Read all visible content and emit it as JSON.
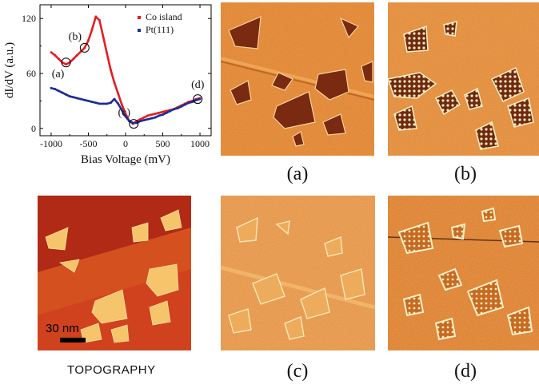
{
  "chart_data": {
    "type": "line",
    "xlabel": "Bias Voltage (mV)",
    "ylabel": "dI/dV (a.u.)",
    "xlim": [
      -1150,
      1150
    ],
    "ylim": [
      -8,
      135
    ],
    "xticks": [
      "-1000",
      "-500",
      "0",
      "500",
      "1000"
    ],
    "yticks": [
      "0",
      "60",
      "120"
    ],
    "legend_position": "top-right",
    "series": [
      {
        "name": "Co island",
        "color": "#e41e25",
        "x": [
          -1000,
          -950,
          -900,
          -850,
          -800,
          -750,
          -700,
          -650,
          -600,
          -550,
          -500,
          -450,
          -400,
          -350,
          -300,
          -250,
          -200,
          -150,
          -100,
          -50,
          0,
          50,
          100,
          150,
          200,
          250,
          300,
          350,
          400,
          450,
          500,
          550,
          600,
          650,
          700,
          750,
          800,
          850,
          900,
          950,
          1000
        ],
        "y": [
          83,
          80,
          76,
          72,
          70,
          72,
          76,
          80,
          84,
          88,
          96,
          108,
          122,
          118,
          100,
          82,
          64,
          50,
          38,
          26,
          16,
          8,
          5,
          8,
          10,
          12,
          14,
          15,
          16,
          17,
          18,
          19,
          20,
          21,
          23,
          25,
          27,
          29,
          30,
          32,
          33
        ]
      },
      {
        "name": "Pt(111)",
        "color": "#1f2d96",
        "x": [
          -1000,
          -950,
          -900,
          -850,
          -800,
          -750,
          -700,
          -650,
          -600,
          -550,
          -500,
          -450,
          -400,
          -350,
          -300,
          -250,
          -200,
          -150,
          -100,
          -50,
          0,
          50,
          100,
          150,
          200,
          250,
          300,
          350,
          400,
          450,
          500,
          550,
          600,
          650,
          700,
          750,
          800,
          850,
          900,
          950,
          1000
        ],
        "y": [
          44,
          43,
          41,
          39,
          37,
          35,
          34,
          33,
          32,
          31,
          30,
          29,
          28,
          27,
          27,
          27,
          28,
          32,
          27,
          20,
          13,
          8,
          6,
          6,
          8,
          9,
          10,
          11,
          12,
          14,
          15,
          17,
          19,
          21,
          22,
          24,
          26,
          28,
          29,
          31,
          32
        ]
      }
    ],
    "annotations": [
      {
        "label": "(a)",
        "x": -800,
        "y": 72
      },
      {
        "label": "(b)",
        "x": -550,
        "y": 88
      },
      {
        "label": "(c)",
        "x": 110,
        "y": 5
      },
      {
        "label": "(d)",
        "x": 970,
        "y": 32
      }
    ]
  },
  "panels": {
    "a": "(a)",
    "b": "(b)",
    "c": "(c)",
    "d": "(d)"
  },
  "topography": {
    "caption": "TOPOGRAPHY",
    "scale_bar": "30 nm"
  },
  "colors": {
    "orange_bg": "#dd7f2c",
    "dark_island": "#7a2a10",
    "bright_edge": "#fbe6b0",
    "topo_bg": "#c8381c",
    "topo_island": "#f6c46a"
  }
}
